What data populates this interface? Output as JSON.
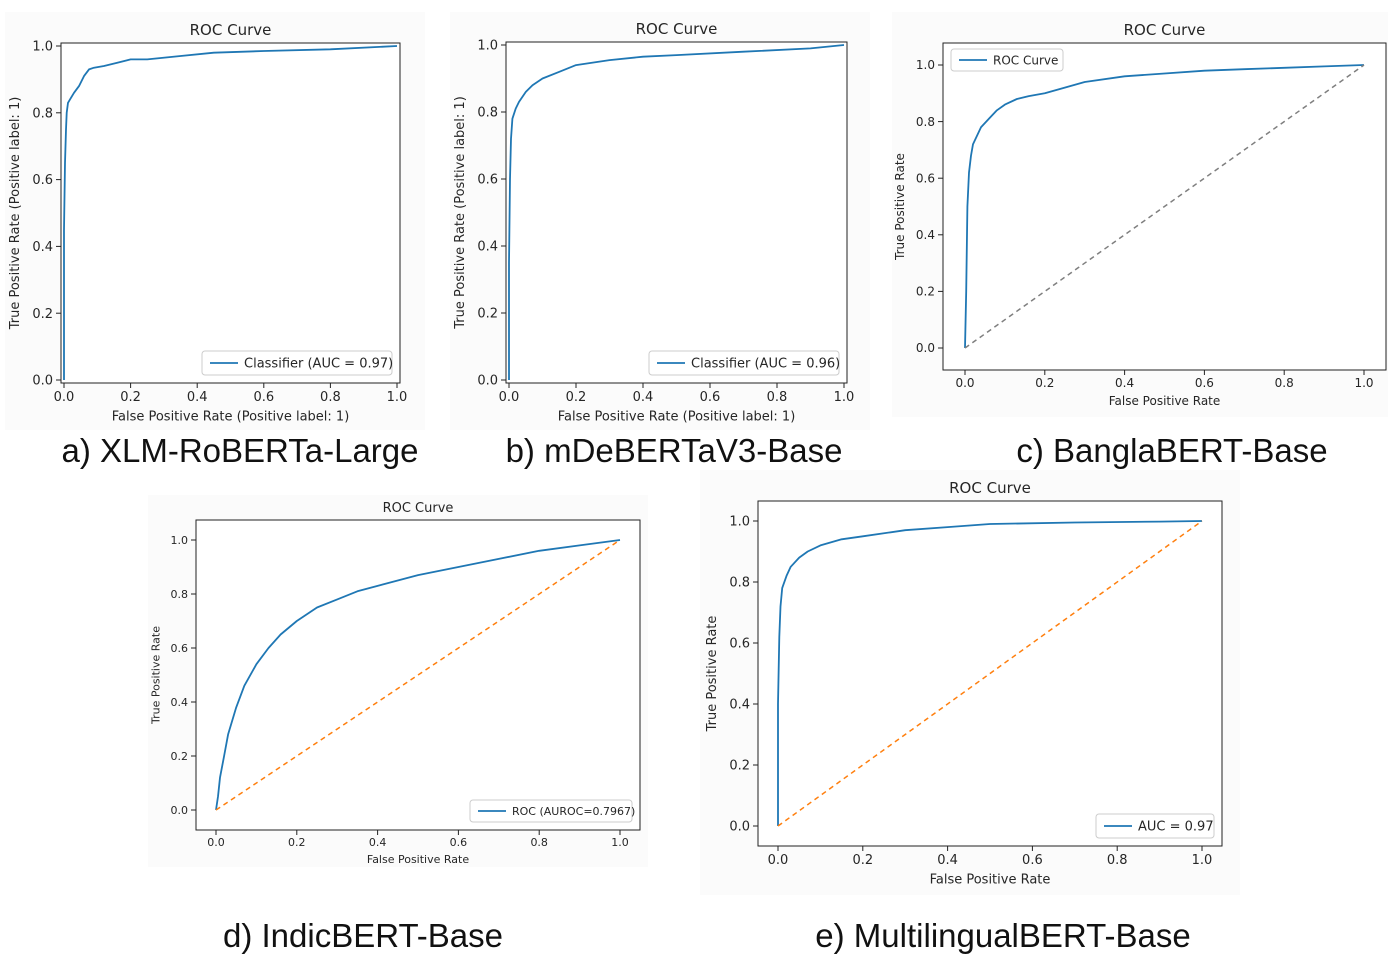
{
  "chart_data": [
    {
      "type": "line",
      "panel": "a",
      "title": "ROC Curve",
      "xlabel": "False Positive Rate (Positive label: 1)",
      "ylabel": "True Positive Rate (Positive label: 1)",
      "xlim": [
        0,
        1
      ],
      "ylim": [
        0,
        1
      ],
      "xticks": [
        "0.0",
        "0.2",
        "0.4",
        "0.6",
        "0.8",
        "1.0"
      ],
      "yticks": [
        "0.0",
        "0.2",
        "0.4",
        "0.6",
        "0.8",
        "1.0"
      ],
      "legend": "lower right",
      "caption": "a) XLM-RoBERTa-Large",
      "series": [
        {
          "name": "Classifier (AUC = 0.97)",
          "color": "#1f77b4",
          "x": [
            0,
            0,
            0.003,
            0.006,
            0.008,
            0.012,
            0.018,
            0.03,
            0.045,
            0.06,
            0.075,
            0.09,
            0.12,
            0.16,
            0.2,
            0.25,
            0.35,
            0.45,
            0.6,
            0.8,
            1.0
          ],
          "y": [
            0,
            0.45,
            0.65,
            0.75,
            0.8,
            0.83,
            0.84,
            0.86,
            0.88,
            0.91,
            0.93,
            0.935,
            0.94,
            0.95,
            0.96,
            0.96,
            0.97,
            0.98,
            0.985,
            0.99,
            1.0
          ]
        }
      ]
    },
    {
      "type": "line",
      "panel": "b",
      "title": "ROC Curve",
      "xlabel": "False Positive Rate (Positive label: 1)",
      "ylabel": "True Positive Rate (Positive label: 1)",
      "xlim": [
        0,
        1
      ],
      "ylim": [
        0,
        1
      ],
      "xticks": [
        "0.0",
        "0.2",
        "0.4",
        "0.6",
        "0.8",
        "1.0"
      ],
      "yticks": [
        "0.0",
        "0.2",
        "0.4",
        "0.6",
        "0.8",
        "1.0"
      ],
      "legend": "lower right",
      "caption": "b) mDeBERTaV3-Base",
      "series": [
        {
          "name": "Classifier (AUC = 0.96)",
          "color": "#1f77b4",
          "x": [
            0,
            0,
            0.003,
            0.006,
            0.01,
            0.02,
            0.03,
            0.05,
            0.07,
            0.1,
            0.15,
            0.2,
            0.3,
            0.4,
            0.5,
            0.7,
            0.9,
            1.0
          ],
          "y": [
            0,
            0.35,
            0.6,
            0.72,
            0.78,
            0.81,
            0.83,
            0.86,
            0.88,
            0.9,
            0.92,
            0.94,
            0.955,
            0.965,
            0.97,
            0.98,
            0.99,
            1.0
          ]
        }
      ]
    },
    {
      "type": "line",
      "panel": "c",
      "title": "ROC Curve",
      "xlabel": "False Positive Rate",
      "ylabel": "True Positive Rate",
      "xlim": [
        0,
        1
      ],
      "ylim": [
        0,
        1
      ],
      "xticks": [
        "0.0",
        "0.2",
        "0.4",
        "0.6",
        "0.8",
        "1.0"
      ],
      "yticks": [
        "0.0",
        "0.2",
        "0.4",
        "0.6",
        "0.8",
        "1.0"
      ],
      "legend": "upper left",
      "caption": "c) BanglaBERT-Base",
      "series": [
        {
          "name": "ROC Curve",
          "color": "#1f77b4",
          "x": [
            0,
            0.003,
            0.006,
            0.01,
            0.015,
            0.02,
            0.03,
            0.04,
            0.06,
            0.08,
            0.1,
            0.13,
            0.16,
            0.2,
            0.25,
            0.3,
            0.4,
            0.5,
            0.6,
            0.7,
            0.8,
            0.9,
            1.0
          ],
          "y": [
            0,
            0.2,
            0.5,
            0.62,
            0.68,
            0.72,
            0.75,
            0.78,
            0.81,
            0.84,
            0.86,
            0.88,
            0.89,
            0.9,
            0.92,
            0.94,
            0.96,
            0.97,
            0.98,
            0.985,
            0.99,
            0.995,
            1.0
          ]
        },
        {
          "name": "chance",
          "color": "#7f7f7f",
          "dashed": true,
          "x": [
            0,
            1
          ],
          "y": [
            0,
            1
          ]
        }
      ]
    },
    {
      "type": "line",
      "panel": "d",
      "title": "ROC Curve",
      "xlabel": "False Positive Rate",
      "ylabel": "True Positive Rate",
      "xlim": [
        0,
        1
      ],
      "ylim": [
        0,
        1
      ],
      "xticks": [
        "0.0",
        "0.2",
        "0.4",
        "0.6",
        "0.8",
        "1.0"
      ],
      "yticks": [
        "0.0",
        "0.2",
        "0.4",
        "0.6",
        "0.8",
        "1.0"
      ],
      "legend": "lower right",
      "caption": "d) IndicBERT-Base",
      "series": [
        {
          "name": "ROC (AUROC=0.7967)",
          "color": "#1f77b4",
          "x": [
            0,
            0.005,
            0.01,
            0.02,
            0.03,
            0.05,
            0.07,
            0.1,
            0.13,
            0.16,
            0.2,
            0.25,
            0.3,
            0.35,
            0.4,
            0.5,
            0.6,
            0.7,
            0.8,
            0.9,
            1.0
          ],
          "y": [
            0,
            0.05,
            0.12,
            0.2,
            0.28,
            0.38,
            0.46,
            0.54,
            0.6,
            0.65,
            0.7,
            0.75,
            0.78,
            0.81,
            0.83,
            0.87,
            0.9,
            0.93,
            0.96,
            0.98,
            1.0
          ]
        },
        {
          "name": "chance",
          "color": "#ff7f0e",
          "dashed": true,
          "x": [
            0,
            1
          ],
          "y": [
            0,
            1
          ]
        }
      ]
    },
    {
      "type": "line",
      "panel": "e",
      "title": "ROC Curve",
      "xlabel": "False Positive Rate",
      "ylabel": "True Positive Rate",
      "xlim": [
        0,
        1
      ],
      "ylim": [
        0,
        1
      ],
      "xticks": [
        "0.0",
        "0.2",
        "0.4",
        "0.6",
        "0.8",
        "1.0"
      ],
      "yticks": [
        "0.0",
        "0.2",
        "0.4",
        "0.6",
        "0.8",
        "1.0"
      ],
      "legend": "lower right",
      "caption": "e) MultilingualBERT-Base",
      "series": [
        {
          "name": "AUC = 0.97",
          "color": "#1f77b4",
          "x": [
            0,
            0,
            0.003,
            0.006,
            0.01,
            0.02,
            0.03,
            0.05,
            0.07,
            0.1,
            0.15,
            0.2,
            0.3,
            0.4,
            0.5,
            0.7,
            0.9,
            1.0
          ],
          "y": [
            0,
            0.4,
            0.62,
            0.72,
            0.78,
            0.82,
            0.85,
            0.88,
            0.9,
            0.92,
            0.94,
            0.95,
            0.97,
            0.98,
            0.99,
            0.995,
            0.998,
            1.0
          ]
        },
        {
          "name": "chance",
          "color": "#ff7f0e",
          "dashed": true,
          "x": [
            0,
            1
          ],
          "y": [
            0,
            1
          ]
        }
      ]
    }
  ]
}
